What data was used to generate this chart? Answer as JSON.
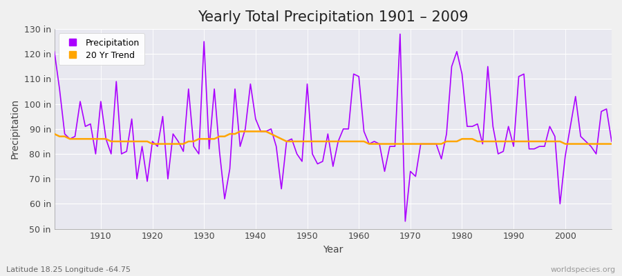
{
  "title": "Yearly Total Precipitation 1901 – 2009",
  "xlabel": "Year",
  "ylabel": "Precipitation",
  "lat_lon_label": "Latitude 18.25 Longitude -64.75",
  "watermark": "worldspecies.org",
  "years": [
    1901,
    1902,
    1903,
    1904,
    1905,
    1906,
    1907,
    1908,
    1909,
    1910,
    1911,
    1912,
    1913,
    1914,
    1915,
    1916,
    1917,
    1918,
    1919,
    1920,
    1921,
    1922,
    1923,
    1924,
    1925,
    1926,
    1927,
    1928,
    1929,
    1930,
    1931,
    1932,
    1933,
    1934,
    1935,
    1936,
    1937,
    1938,
    1939,
    1940,
    1941,
    1942,
    1943,
    1944,
    1945,
    1946,
    1947,
    1948,
    1949,
    1950,
    1951,
    1952,
    1953,
    1954,
    1955,
    1956,
    1957,
    1958,
    1959,
    1960,
    1961,
    1962,
    1963,
    1964,
    1965,
    1966,
    1967,
    1968,
    1969,
    1970,
    1971,
    1972,
    1973,
    1974,
    1975,
    1976,
    1977,
    1978,
    1979,
    1980,
    1981,
    1982,
    1983,
    1984,
    1985,
    1986,
    1987,
    1988,
    1989,
    1990,
    1991,
    1992,
    1993,
    1994,
    1995,
    1996,
    1997,
    1998,
    1999,
    2000,
    2001,
    2002,
    2003,
    2004,
    2005,
    2006,
    2007,
    2008,
    2009
  ],
  "precip": [
    121,
    106,
    88,
    86,
    87,
    101,
    91,
    92,
    80,
    101,
    86,
    80,
    109,
    80,
    81,
    94,
    70,
    83,
    69,
    85,
    83,
    95,
    70,
    88,
    85,
    81,
    106,
    83,
    80,
    125,
    82,
    106,
    81,
    62,
    74,
    106,
    83,
    90,
    108,
    94,
    89,
    89,
    90,
    83,
    66,
    85,
    86,
    80,
    77,
    108,
    80,
    76,
    77,
    88,
    75,
    85,
    90,
    90,
    112,
    111,
    89,
    84,
    85,
    84,
    73,
    83,
    83,
    128,
    53,
    73,
    71,
    84,
    84,
    84,
    84,
    78,
    88,
    115,
    121,
    112,
    91,
    91,
    92,
    84,
    115,
    91,
    80,
    81,
    91,
    83,
    111,
    112,
    82,
    82,
    83,
    83,
    91,
    87,
    60,
    79,
    91,
    103,
    87,
    85,
    83,
    80,
    97,
    98,
    85
  ],
  "trend": [
    88,
    87,
    87,
    86,
    86,
    86,
    86,
    86,
    86,
    86,
    86,
    85,
    85,
    85,
    85,
    85,
    85,
    85,
    85,
    84,
    84,
    84,
    84,
    84,
    84,
    84,
    85,
    85,
    86,
    86,
    86,
    86,
    87,
    87,
    88,
    88,
    89,
    89,
    89,
    89,
    89,
    89,
    88,
    87,
    86,
    85,
    85,
    85,
    85,
    85,
    85,
    85,
    85,
    85,
    85,
    85,
    85,
    85,
    85,
    85,
    85,
    84,
    84,
    84,
    84,
    84,
    84,
    84,
    84,
    84,
    84,
    84,
    84,
    84,
    84,
    84,
    85,
    85,
    85,
    86,
    86,
    86,
    85,
    85,
    85,
    85,
    85,
    85,
    85,
    85,
    85,
    85,
    85,
    85,
    85,
    85,
    85,
    85,
    85,
    84,
    84,
    84,
    84,
    84,
    84,
    84,
    84,
    84,
    84
  ],
  "precip_color": "#AA00FF",
  "trend_color": "#FFA500",
  "fig_bg_color": "#F0F0F0",
  "plot_bg_color": "#E8E8F0",
  "grid_color": "#FFFFFF",
  "ylim": [
    50,
    130
  ],
  "yticks": [
    50,
    60,
    70,
    80,
    90,
    100,
    110,
    120,
    130
  ],
  "ytick_labels": [
    "50 in",
    "60 in",
    "70 in",
    "80 in",
    "90 in",
    "100 in",
    "110 in",
    "120 in",
    "130 in"
  ],
  "xticks": [
    1910,
    1920,
    1930,
    1940,
    1950,
    1960,
    1970,
    1980,
    1990,
    2000
  ],
  "xlim": [
    1901,
    2009
  ],
  "title_fontsize": 15,
  "axis_fontsize": 10,
  "tick_fontsize": 9,
  "legend_fontsize": 9,
  "precip_linewidth": 1.2,
  "trend_linewidth": 1.8
}
